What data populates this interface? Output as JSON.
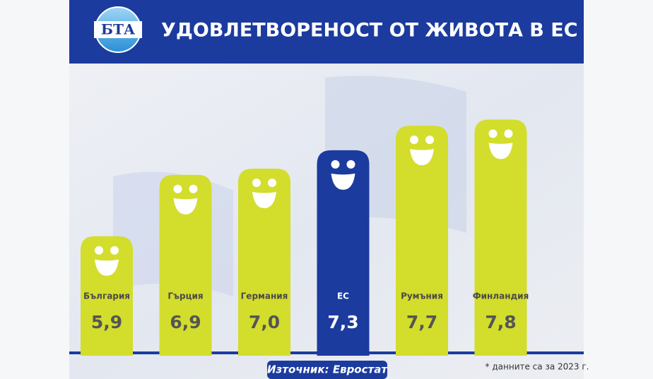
{
  "logo": "БТА",
  "chart_data": {
    "type": "bar",
    "title": "УДОВЛЕТВОРЕНОСТ ОТ ЖИВОТА В ЕС",
    "categories": [
      "България",
      "Гърция",
      "Германия",
      "ЕС",
      "Румъния",
      "Финландия"
    ],
    "values": [
      5.9,
      6.9,
      7.0,
      7.3,
      7.7,
      7.8
    ],
    "value_labels": [
      "5,9",
      "6,9",
      "7,0",
      "7,3",
      "7,7",
      "7,8"
    ],
    "colors": [
      "#d3dd2c",
      "#d3dd2c",
      "#d3dd2c",
      "#1b3b9e",
      "#d3dd2c",
      "#d3dd2c"
    ],
    "ylim": [
      4,
      9
    ],
    "source": "Източник: Евростат",
    "note": "* данните са за 2023 г."
  }
}
